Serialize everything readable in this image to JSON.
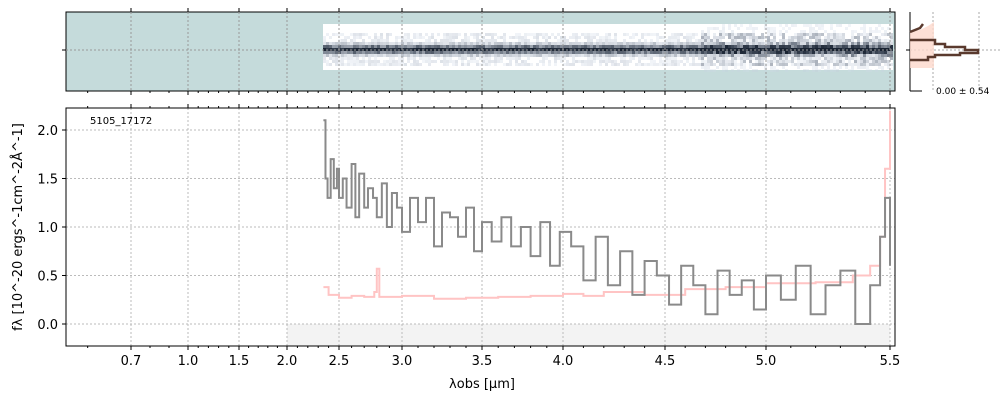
{
  "chart_data": {
    "type": "line",
    "object_label": "5105_17172",
    "xlabel": "λobs [μm]",
    "ylabel": "fλ [10^-20 ergs^-1cm^-2Å^-1]",
    "xticks": [
      "0.7",
      "1.0",
      "1.5",
      "2.0",
      "2.5",
      "3.0",
      "3.5",
      "4.0",
      "4.5",
      "5.0",
      "5.5"
    ],
    "yticks": [
      "0.0",
      "0.5",
      "1.0",
      "1.5",
      "2.0"
    ],
    "ylim": [
      -0.23,
      2.24
    ],
    "xlim": [
      0.55,
      5.52
    ],
    "grid": true,
    "histogram_label": "0.00 ± 0.54",
    "colors": {
      "flux": "#8a8a8a",
      "error": "#ffc4c4",
      "image_bg": "#c5dbdb",
      "hist_edge": "#5a3a2e",
      "hist_fill": "#fdd8cc"
    },
    "series": [
      {
        "name": "flux",
        "x": [
          2.35,
          2.37,
          2.39,
          2.42,
          2.45,
          2.48,
          2.5,
          2.53,
          2.56,
          2.6,
          2.63,
          2.66,
          2.7,
          2.73,
          2.77,
          2.8,
          2.84,
          2.88,
          2.92,
          2.96,
          3.0,
          3.05,
          3.1,
          3.15,
          3.2,
          3.25,
          3.3,
          3.35,
          3.4,
          3.45,
          3.5,
          3.56,
          3.62,
          3.68,
          3.74,
          3.8,
          3.86,
          3.92,
          3.98,
          4.04,
          4.1,
          4.16,
          4.22,
          4.28,
          4.34,
          4.4,
          4.46,
          4.52,
          4.58,
          4.64,
          4.7,
          4.76,
          4.82,
          4.88,
          4.94,
          5.0,
          5.06,
          5.12,
          5.18,
          5.24,
          5.3,
          5.36,
          5.42,
          5.46,
          5.48,
          5.5
        ],
        "y": [
          2.1,
          1.5,
          1.3,
          1.7,
          1.4,
          1.6,
          1.3,
          1.5,
          1.2,
          1.65,
          1.1,
          1.55,
          1.2,
          1.4,
          1.3,
          1.1,
          1.45,
          1.0,
          1.35,
          1.2,
          0.95,
          1.3,
          1.05,
          1.3,
          0.8,
          1.15,
          1.1,
          0.9,
          1.2,
          0.75,
          1.05,
          0.85,
          1.1,
          0.8,
          1.0,
          0.7,
          1.05,
          0.6,
          0.95,
          0.8,
          0.45,
          0.9,
          0.4,
          0.75,
          0.3,
          0.65,
          0.5,
          0.2,
          0.6,
          0.4,
          0.1,
          0.55,
          0.3,
          0.45,
          0.15,
          0.5,
          0.25,
          0.6,
          0.1,
          0.4,
          0.55,
          0.0,
          0.4,
          0.9,
          1.3,
          0.6
        ]
      },
      {
        "name": "error",
        "x": [
          2.35,
          2.4,
          2.5,
          2.6,
          2.7,
          2.78,
          2.8,
          2.82,
          2.9,
          3.0,
          3.2,
          3.4,
          3.6,
          3.8,
          4.0,
          4.1,
          4.2,
          4.4,
          4.6,
          4.8,
          5.0,
          5.2,
          5.35,
          5.42,
          5.46,
          5.48,
          5.5
        ],
        "y": [
          0.38,
          0.3,
          0.27,
          0.29,
          0.28,
          0.33,
          0.57,
          0.28,
          0.28,
          0.29,
          0.26,
          0.27,
          0.28,
          0.29,
          0.31,
          0.29,
          0.33,
          0.3,
          0.36,
          0.38,
          0.42,
          0.43,
          0.5,
          0.6,
          0.9,
          1.6,
          2.2
        ]
      }
    ]
  }
}
